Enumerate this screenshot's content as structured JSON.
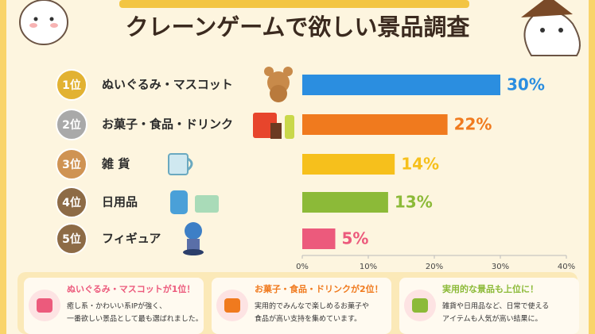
{
  "chart_data": {
    "type": "hbar",
    "title": "クレーンゲームで欲しい景品調査",
    "ranks": [
      "1位",
      "2位",
      "3位",
      "4位",
      "5位"
    ],
    "rank_colors": [
      "#e2b232",
      "#a9a9a9",
      "#cf9353",
      "#8d6b46",
      "#8d6b46"
    ],
    "categories": [
      "ぬいぐるみ・マスコット",
      "お菓子・食品・ドリンク",
      "雑 貨",
      "日用品",
      "フィギュア"
    ],
    "values": [
      30,
      22,
      14,
      13,
      5
    ],
    "value_labels": [
      "30%",
      "22%",
      "14%",
      "13%",
      "5%"
    ],
    "colors": [
      "#2b8ee0",
      "#f07a1e",
      "#f6c01c",
      "#8cba38",
      "#ec5a7c"
    ],
    "xlim": [
      0,
      40
    ],
    "xticks": [
      {
        "value": 0,
        "label": "0%"
      },
      {
        "value": 10,
        "label": "10%"
      },
      {
        "value": 20,
        "label": "20%"
      },
      {
        "value": 30,
        "label": "30%"
      },
      {
        "value": 40,
        "label": "40%"
      }
    ],
    "grid": false
  },
  "cards": [
    {
      "title": "ぬいぐるみ・マスコットが1位！",
      "lines": [
        "癒し系・かわいい系IPが強く、",
        "一番欲しい景品として最も選ばれました。"
      ]
    },
    {
      "title": "お菓子・食品・ドリンクが2位！",
      "lines": [
        "実用的でみんなで楽しめるお菓子や",
        "食品が高い支持を集めています。"
      ]
    },
    {
      "title": "実用的な景品も上位に！",
      "lines": [
        "雑貨や日用品など、日常で使える",
        "アイテムも人気が高い結果に。"
      ]
    }
  ]
}
